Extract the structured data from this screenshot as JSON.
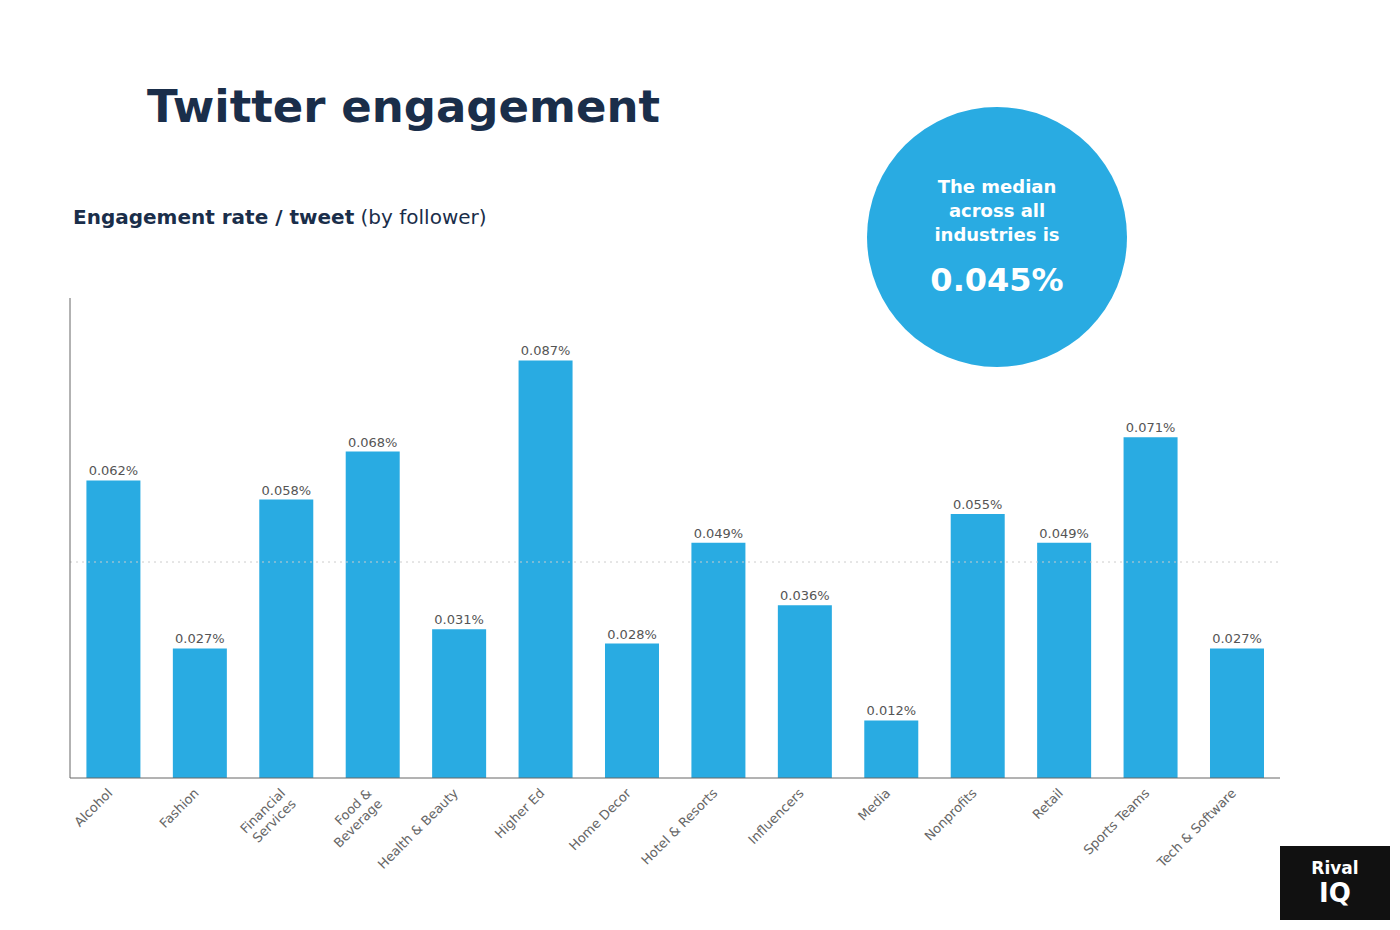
{
  "chart_data": {
    "type": "bar",
    "title": "Twitter engagement",
    "subtitle": [
      "Engagement rate / tweet",
      " (by follower)"
    ],
    "categories": [
      "Alcohol",
      "Fashion",
      "Financial\nServices",
      "Food &\nBeverage",
      "Health & Beauty",
      "Higher Ed",
      "Home Decor",
      "Hotel & Resorts",
      "Influencers",
      "Media",
      "Nonprofits",
      "Retail",
      "Sports Teams",
      "Tech & Software"
    ],
    "values": [
      0.062,
      0.027,
      0.058,
      0.068,
      0.031,
      0.087,
      0.028,
      0.049,
      0.036,
      0.012,
      0.055,
      0.049,
      0.071,
      0.027
    ],
    "value_labels": [
      "0.062%",
      "0.027%",
      "0.058%",
      "0.068%",
      "0.031%",
      "0.087%",
      "0.028%",
      "0.049%",
      "0.036%",
      "0.012%",
      "0.055%",
      "0.049%",
      "0.071%",
      "0.027%"
    ],
    "data_labels": true,
    "color": "#29ABE2",
    "ylim": [
      0,
      0.1
    ],
    "yticks": [],
    "grid": false,
    "tick_labels": "x",
    "reference_line": 0.045,
    "annotations": [
      {
        "lines": [
          "The median",
          "across all",
          "industries is",
          "0.045%"
        ],
        "color": "#29ABE2"
      },
      {
        "lines": [
          "Rival",
          "IQ"
        ],
        "color": "#111111"
      }
    ]
  }
}
